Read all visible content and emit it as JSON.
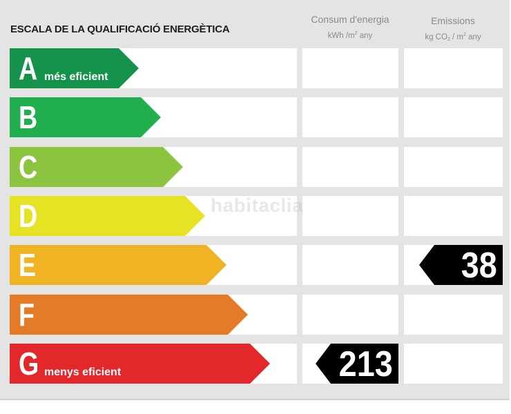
{
  "title": "ESCALA DE LA QUALIFICACIÓ ENERGÈTICA",
  "columns": {
    "consum": {
      "label": "Consum d'energia",
      "unit_pre": "kWh /m",
      "unit_sup": "2",
      "unit_post": " any"
    },
    "emissions": {
      "label": "Emissions",
      "unit_pre": "kg CO",
      "unit_sub": "2",
      "unit_mid": " / m",
      "unit_sup": "2",
      "unit_post": " any"
    }
  },
  "ratings": [
    {
      "letter": "A",
      "label": "més eficient",
      "color": "#14924c"
    },
    {
      "letter": "B",
      "label": "",
      "color": "#21ae4f"
    },
    {
      "letter": "C",
      "label": "",
      "color": "#8cc43f"
    },
    {
      "letter": "D",
      "label": "",
      "color": "#e6e324"
    },
    {
      "letter": "E",
      "label": "",
      "color": "#f0b323"
    },
    {
      "letter": "F",
      "label": "",
      "color": "#e37b28"
    },
    {
      "letter": "G",
      "label": "menys eficient",
      "color": "#e3282c"
    }
  ],
  "consum_value": {
    "rating": "G",
    "value": "213"
  },
  "emissions_value": {
    "rating": "E",
    "value": "38"
  },
  "watermark": "habitaclia"
}
